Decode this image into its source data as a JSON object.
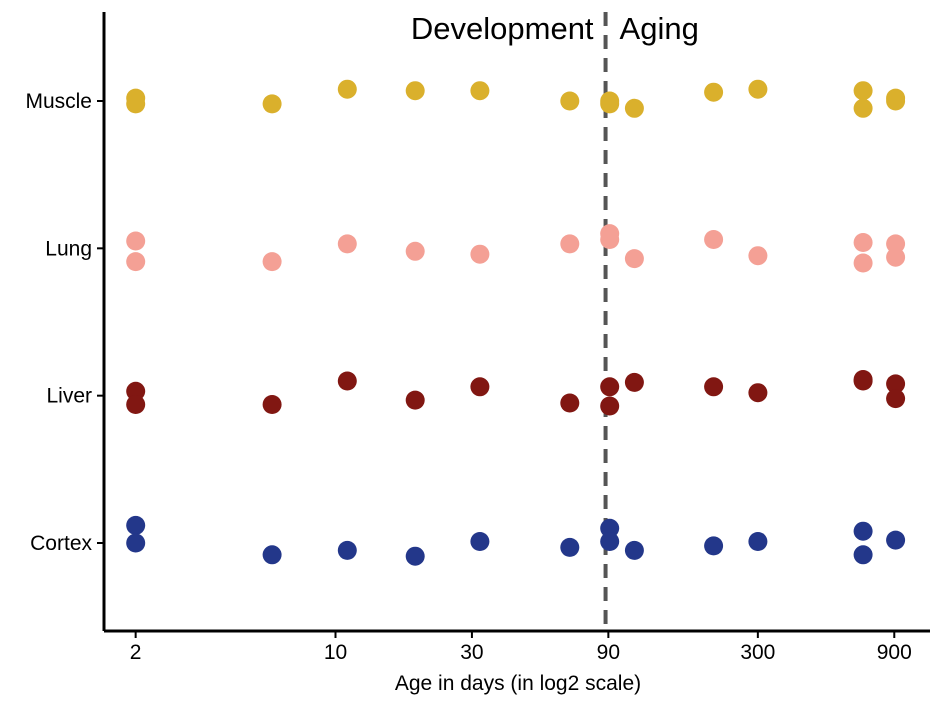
{
  "chart_data": {
    "type": "scatter",
    "xlabel": "Age in days (in log2 scale)",
    "ylabel": "",
    "x_scale": "log2",
    "xlim": [
      1.55,
      1200
    ],
    "x_ticks": [
      {
        "value": 2,
        "label": "2"
      },
      {
        "value": 10,
        "label": "10"
      },
      {
        "value": 30,
        "label": "30"
      },
      {
        "value": 90,
        "label": "90"
      },
      {
        "value": 300,
        "label": "300"
      },
      {
        "value": 900,
        "label": "900"
      }
    ],
    "categories": [
      "Cortex",
      "Liver",
      "Lung",
      "Muscle"
    ],
    "reference_line": {
      "x": 88,
      "style": "dashed",
      "color": "#555555"
    },
    "annotations": [
      {
        "text": "Development",
        "anchor": "end",
        "x": 88,
        "y_cat": "top"
      },
      {
        "text": "Aging",
        "anchor": "start",
        "x": 88,
        "y_cat": "top"
      }
    ],
    "grid": false,
    "legend": "none",
    "series": [
      {
        "category": "Muscle",
        "color": "#DAB02C",
        "points": [
          [
            2,
            0.02
          ],
          [
            2,
            -0.02
          ],
          [
            6,
            -0.02
          ],
          [
            11,
            0.08
          ],
          [
            19,
            0.07
          ],
          [
            32,
            0.07
          ],
          [
            66,
            0.0
          ],
          [
            91,
            0.0
          ],
          [
            91,
            -0.02
          ],
          [
            111,
            -0.05
          ],
          [
            210,
            0.06
          ],
          [
            300,
            0.08
          ],
          [
            700,
            0.07
          ],
          [
            700,
            -0.05
          ],
          [
            910,
            0.02
          ],
          [
            910,
            0.0
          ]
        ]
      },
      {
        "category": "Lung",
        "color": "#F4A095",
        "points": [
          [
            2,
            0.05
          ],
          [
            2,
            -0.09
          ],
          [
            6,
            -0.09
          ],
          [
            11,
            0.03
          ],
          [
            19,
            -0.02
          ],
          [
            32,
            -0.04
          ],
          [
            66,
            0.03
          ],
          [
            91,
            0.1
          ],
          [
            91,
            0.06
          ],
          [
            111,
            -0.07
          ],
          [
            210,
            0.06
          ],
          [
            300,
            -0.05
          ],
          [
            700,
            0.04
          ],
          [
            700,
            -0.1
          ],
          [
            910,
            0.03
          ],
          [
            910,
            -0.06
          ]
        ]
      },
      {
        "category": "Liver",
        "color": "#811712",
        "points": [
          [
            2,
            0.03
          ],
          [
            2,
            -0.06
          ],
          [
            6,
            -0.06
          ],
          [
            11,
            0.1
          ],
          [
            19,
            -0.03
          ],
          [
            32,
            0.06
          ],
          [
            66,
            -0.05
          ],
          [
            91,
            0.06
          ],
          [
            91,
            -0.07
          ],
          [
            111,
            0.09
          ],
          [
            210,
            0.06
          ],
          [
            300,
            0.02
          ],
          [
            700,
            0.11
          ],
          [
            700,
            0.1
          ],
          [
            910,
            0.08
          ],
          [
            910,
            -0.02
          ]
        ]
      },
      {
        "category": "Cortex",
        "color": "#23378A",
        "points": [
          [
            2,
            0.12
          ],
          [
            2,
            0.0
          ],
          [
            6,
            -0.08
          ],
          [
            11,
            -0.05
          ],
          [
            19,
            -0.09
          ],
          [
            32,
            0.01
          ],
          [
            66,
            -0.03
          ],
          [
            91,
            0.1
          ],
          [
            91,
            0.01
          ],
          [
            111,
            -0.05
          ],
          [
            210,
            -0.02
          ],
          [
            300,
            0.01
          ],
          [
            700,
            0.08
          ],
          [
            700,
            -0.08
          ],
          [
            910,
            0.02
          ]
        ]
      }
    ]
  }
}
